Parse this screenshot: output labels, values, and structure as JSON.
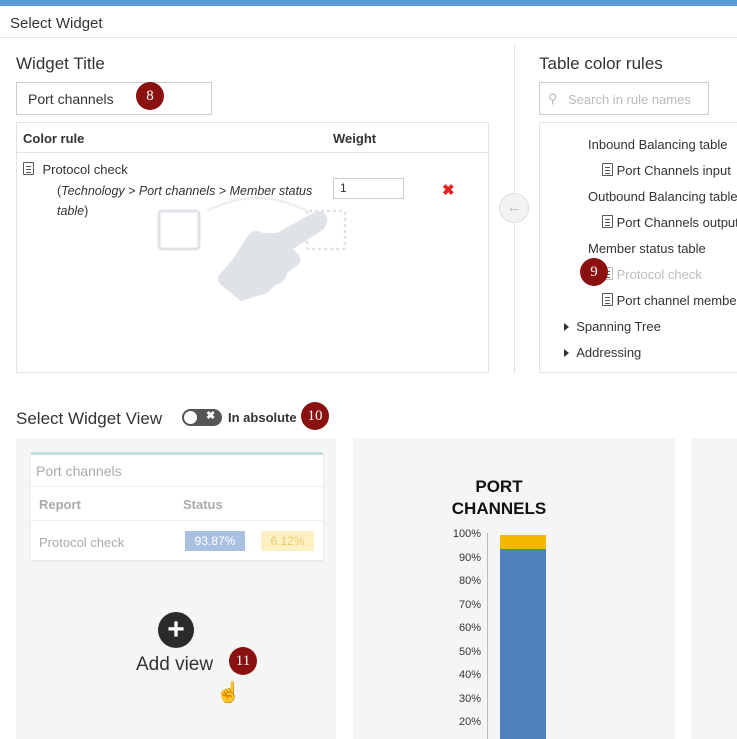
{
  "window": {
    "title": "Select Widget"
  },
  "widget_title": {
    "heading": "Widget Title",
    "value": "Port channels"
  },
  "color_rules": {
    "col_rule": "Color rule",
    "col_weight": "Weight",
    "row": {
      "name": "Protocol check",
      "path_open": "(",
      "path": "Technology > Port channels > Member status table",
      "path_close": ")",
      "weight": "1"
    }
  },
  "table_rules": {
    "heading": "Table color rules",
    "search_placeholder": "Search in rule names",
    "tree": {
      "inbound": "Inbound Balancing table",
      "inbound_child": "Port Channels input",
      "outbound": "Outbound Balancing table",
      "outbound_child": "Port Channels output",
      "member": "Member status table",
      "member_child1": "Protocol check",
      "member_child2": "Port channel member",
      "spanning": "Spanning Tree",
      "addressing": "Addressing"
    }
  },
  "view": {
    "heading": "Select Widget View",
    "toggle_label": "In absolute",
    "preview": {
      "title": "Port channels",
      "col_report": "Report",
      "col_status": "Status",
      "row_name": "Protocol check",
      "val_blue": "93.87%",
      "val_yellow": "6.12%"
    },
    "add_view": "Add view"
  },
  "badges": {
    "b8": "8",
    "b9": "9",
    "b10": "10",
    "b11": "11"
  },
  "colors": {
    "accent": "#5b9bd5",
    "badge": "#8b1010",
    "bar_blue": "#4f81bd",
    "bar_yellow": "#f5b800",
    "delete": "#e02424"
  },
  "chart_data": {
    "type": "bar",
    "title_line1": "PORT",
    "title_line2": "CHANNELS",
    "yticks": [
      "100%",
      "90%",
      "80%",
      "70%",
      "60%",
      "50%",
      "40%",
      "30%",
      "20%"
    ],
    "ylim": [
      0,
      100
    ],
    "series": [
      {
        "values": [
          93.87
        ],
        "color": "#4f81bd"
      },
      {
        "values": [
          6.12
        ],
        "color": "#f5b800"
      }
    ]
  }
}
